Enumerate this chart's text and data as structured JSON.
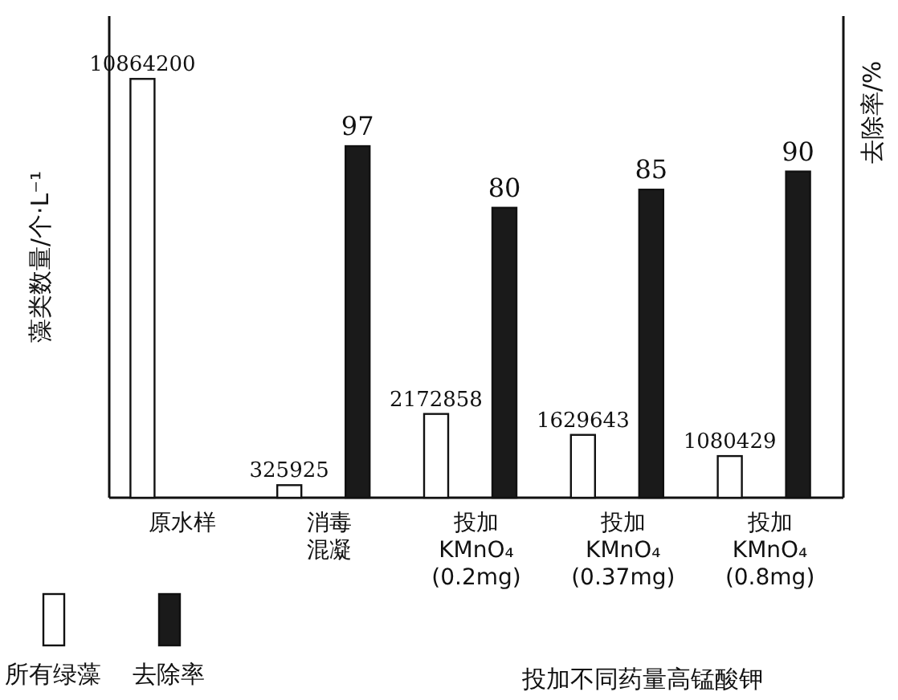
{
  "chart_data": {
    "type": "bar",
    "ylabel": "藻类数量/个·L⁻¹",
    "y2label": "去除率/%",
    "xlabel": "投加不同药量高锰酸钾",
    "categories": [
      "原水样",
      "消毒混凝",
      "投加 KMnO₄ (0.2mg)",
      "投加 KMnO₄ (0.37mg)",
      "投加 KMnO₄ (0.8mg)"
    ],
    "series": [
      {
        "name": "所有绿藻",
        "color": "#ffffff",
        "values": [
          10864200,
          325925,
          2172858,
          1629643,
          1080429
        ]
      },
      {
        "name": "去除率",
        "color": "#1a1a1a",
        "axis": "y2",
        "values": [
          null,
          97,
          80,
          85,
          90
        ]
      }
    ],
    "data_labels": true,
    "legend": "bottom left"
  }
}
